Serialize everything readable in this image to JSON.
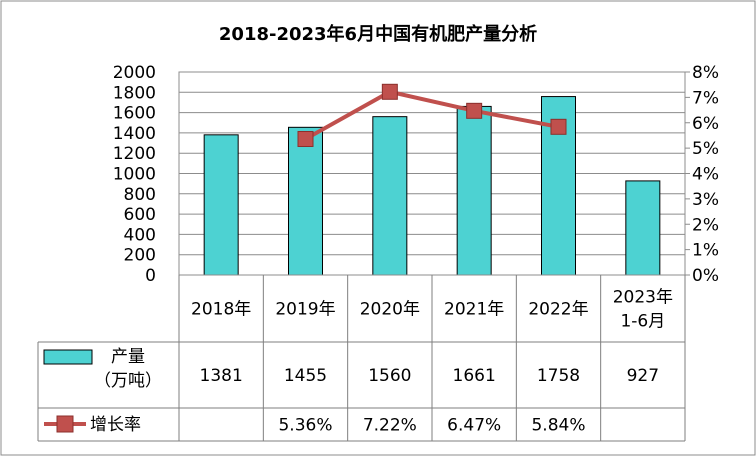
{
  "chart_data": {
    "type": "bar",
    "title": "2018-2023年6月中国有机肥产量分析",
    "categories": [
      "2018年",
      "2019年",
      "2020年",
      "2021年",
      "2022年",
      "2023年 1-6月"
    ],
    "category_lines": [
      [
        "2018年"
      ],
      [
        "2019年"
      ],
      [
        "2020年"
      ],
      [
        "2021年"
      ],
      [
        "2022年"
      ],
      [
        "2023年",
        "1-6月"
      ]
    ],
    "ylim": [
      0,
      2000
    ],
    "yticks": [
      "0",
      "200",
      "400",
      "600",
      "800",
      "1000",
      "1200",
      "1400",
      "1600",
      "1800",
      "2000"
    ],
    "y2lim": [
      0,
      8
    ],
    "y2ticks": [
      "0%",
      "1%",
      "2%",
      "3%",
      "4%",
      "5%",
      "6%",
      "7%",
      "8%"
    ],
    "grid": true,
    "series": [
      {
        "name": "产量（万吨）",
        "name_lines": [
          "产量",
          "（万吨）"
        ],
        "type": "bar",
        "axis": "left",
        "color": "#4DD2D2",
        "values": [
          1381,
          1455,
          1560,
          1661,
          1758,
          927
        ],
        "labels": [
          "1381",
          "1455",
          "1560",
          "1661",
          "1758",
          "927"
        ]
      },
      {
        "name": "增长率",
        "type": "line",
        "axis": "right",
        "color": "#C0504D",
        "values": [
          null,
          5.36,
          7.22,
          6.47,
          5.84,
          null
        ],
        "labels": [
          "",
          "5.36%",
          "7.22%",
          "6.47%",
          "5.84%",
          ""
        ]
      }
    ]
  }
}
